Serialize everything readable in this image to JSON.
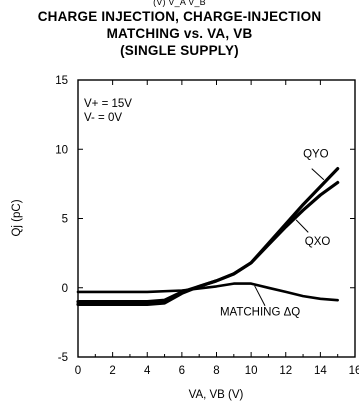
{
  "title": {
    "line0": "(V) V_A V_B",
    "line1": "CHARGE INJECTION, CHARGE-INJECTION",
    "line2": "MATCHING vs. VA, VB",
    "line3": "(SINGLE SUPPLY)"
  },
  "chart_data": {
    "type": "line",
    "xlabel": "VA, VB (V)",
    "ylabel": "Qj (pC)",
    "xlim": [
      0,
      16
    ],
    "ylim": [
      -5,
      15
    ],
    "xticks": [
      0,
      2,
      4,
      6,
      8,
      10,
      12,
      14,
      16
    ],
    "yticks": [
      -5,
      0,
      5,
      10,
      15
    ],
    "conditions": [
      "V+ = 15V",
      "V- = 0V"
    ],
    "grid": false,
    "series": [
      {
        "name": "QYO",
        "x": [
          0,
          2,
          4,
          5,
          6,
          7,
          8,
          9,
          10,
          11,
          12,
          13,
          14,
          15
        ],
        "y": [
          -1.2,
          -1.2,
          -1.2,
          -1.1,
          -0.4,
          0.1,
          0.5,
          1.0,
          1.8,
          3.2,
          4.6,
          6.0,
          7.3,
          8.6
        ]
      },
      {
        "name": "QXO",
        "x": [
          0,
          2,
          4,
          5,
          6,
          7,
          8,
          9,
          10,
          11,
          12,
          13,
          14,
          15
        ],
        "y": [
          -1.0,
          -1.0,
          -1.0,
          -0.9,
          -0.3,
          0.1,
          0.5,
          1.0,
          1.8,
          3.1,
          4.4,
          5.6,
          6.7,
          7.6
        ]
      },
      {
        "name": "MATCHING ΔQ",
        "x": [
          0,
          2,
          4,
          6,
          8,
          9,
          10,
          11,
          12,
          13,
          14,
          15
        ],
        "y": [
          -0.3,
          -0.3,
          -0.3,
          -0.2,
          0.1,
          0.3,
          0.3,
          0.0,
          -0.3,
          -0.6,
          -0.8,
          -0.9
        ]
      }
    ],
    "labels": {
      "qyo": "QYO",
      "qxo": "QXO",
      "matching": "MATCHING ΔQ"
    }
  }
}
